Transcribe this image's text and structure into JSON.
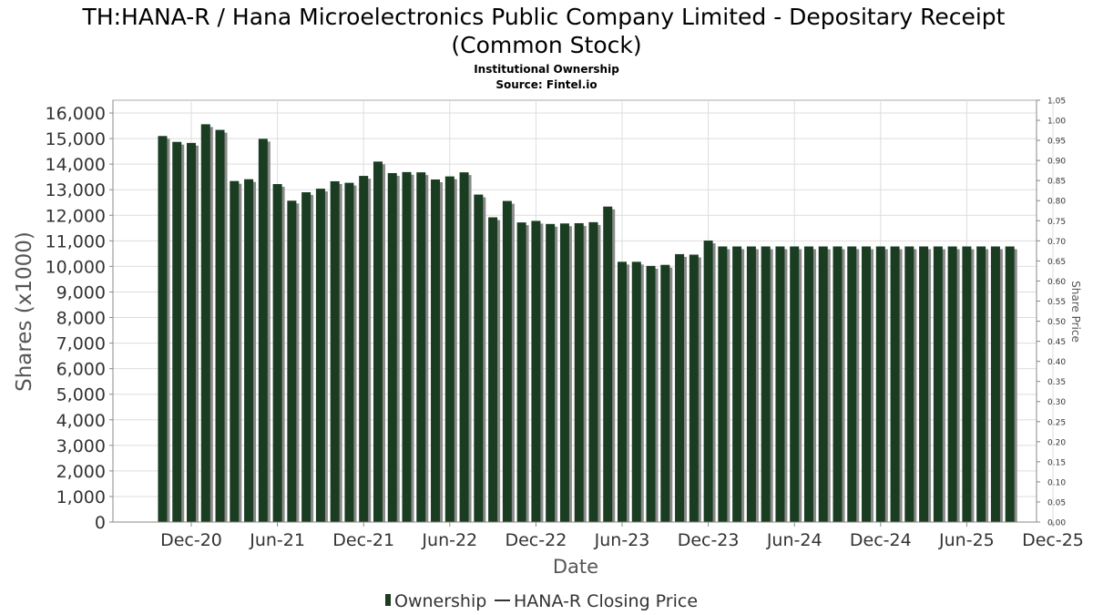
{
  "chart_data": {
    "type": "bar",
    "title_line1": "TH:HANA-R / Hana Microelectronics Public Company Limited - Depositary Receipt",
    "title_line2": "(Common Stock)",
    "subtitle_line1": "Institutional Ownership",
    "subtitle_line2": "Source: Fintel.io",
    "xlabel": "Date",
    "ylabel": "Shares (x1000)",
    "y2label": "Share Price",
    "ylim": [
      0,
      16500
    ],
    "y2lim": [
      0,
      1.05
    ],
    "y_ticks": [
      "0",
      "1,000",
      "2,000",
      "3,000",
      "4,000",
      "5,000",
      "6,000",
      "7,000",
      "8,000",
      "9,000",
      "10,000",
      "11,000",
      "12,000",
      "13,000",
      "14,000",
      "15,000",
      "16,000"
    ],
    "y2_ticks": [
      "0.00",
      "0.05",
      "0.10",
      "0.15",
      "0.20",
      "0.25",
      "0.30",
      "0.35",
      "0.40",
      "0.45",
      "0.50",
      "0.55",
      "0.60",
      "0.65",
      "0.70",
      "0.75",
      "0.80",
      "0.85",
      "0.90",
      "0.95",
      "1.00",
      "1.05"
    ],
    "x_ticks": [
      "Dec-20",
      "Jun-21",
      "Dec-21",
      "Jun-22",
      "Dec-22",
      "Jun-23",
      "Dec-23",
      "Jun-24",
      "Dec-24",
      "Jun-25",
      "Dec-25"
    ],
    "grid": true,
    "legend_position": "bottom",
    "colors": {
      "bar": "#1a3d22",
      "bar_shadow": "#8a8a8a",
      "price_line": "#333333",
      "grid": "#dddddd"
    },
    "series": [
      {
        "name": "Ownership",
        "values": [
          15100,
          14870,
          14830,
          15560,
          15340,
          13340,
          13410,
          14990,
          13220,
          12570,
          12900,
          13040,
          13330,
          13270,
          13540,
          14100,
          13650,
          13690,
          13680,
          13400,
          13520,
          13680,
          12810,
          11920,
          12560,
          11720,
          11780,
          11660,
          11680,
          11690,
          11730,
          12340,
          10180,
          10180,
          10020,
          10060,
          10480,
          10460,
          11010,
          10780,
          10780,
          10780,
          10780,
          10780,
          10780,
          10780,
          10780,
          10780,
          10780,
          10780,
          10780,
          10780,
          10780,
          10780,
          10780,
          10780,
          10780,
          10780,
          10780,
          10780
        ]
      },
      {
        "name": "HANA-R Closing Price",
        "values": []
      }
    ]
  }
}
